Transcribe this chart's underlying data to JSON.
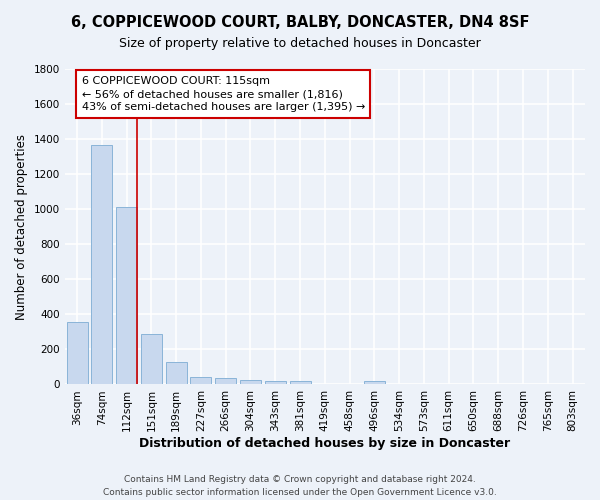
{
  "title": "6, COPPICEWOOD COURT, BALBY, DONCASTER, DN4 8SF",
  "subtitle": "Size of property relative to detached houses in Doncaster",
  "xlabel": "Distribution of detached houses by size in Doncaster",
  "ylabel": "Number of detached properties",
  "categories": [
    "36sqm",
    "74sqm",
    "112sqm",
    "151sqm",
    "189sqm",
    "227sqm",
    "266sqm",
    "304sqm",
    "343sqm",
    "381sqm",
    "419sqm",
    "458sqm",
    "496sqm",
    "534sqm",
    "573sqm",
    "611sqm",
    "650sqm",
    "688sqm",
    "726sqm",
    "765sqm",
    "803sqm"
  ],
  "values": [
    355,
    1365,
    1010,
    290,
    128,
    43,
    36,
    27,
    20,
    18,
    0,
    0,
    20,
    0,
    0,
    0,
    0,
    0,
    0,
    0,
    0
  ],
  "bar_color": "#c8d8ee",
  "bar_edge_color": "#8ab4d8",
  "vline_color": "#cc0000",
  "vline_position": 2.43,
  "annotation_line1": "6 COPPICEWOOD COURT: 115sqm",
  "annotation_line2": "← 56% of detached houses are smaller (1,816)",
  "annotation_line3": "43% of semi-detached houses are larger (1,395) →",
  "annotation_box_edge_color": "#cc0000",
  "ylim": [
    0,
    1800
  ],
  "yticks": [
    0,
    200,
    400,
    600,
    800,
    1000,
    1200,
    1400,
    1600,
    1800
  ],
  "footer1": "Contains HM Land Registry data © Crown copyright and database right 2024.",
  "footer2": "Contains public sector information licensed under the Open Government Licence v3.0.",
  "bg_color": "#edf2f9",
  "grid_color": "#ffffff",
  "title_fontsize": 10.5,
  "subtitle_fontsize": 9,
  "ylabel_fontsize": 8.5,
  "xlabel_fontsize": 9,
  "tick_fontsize": 7.5,
  "annotation_fontsize": 8,
  "footer_fontsize": 6.5
}
